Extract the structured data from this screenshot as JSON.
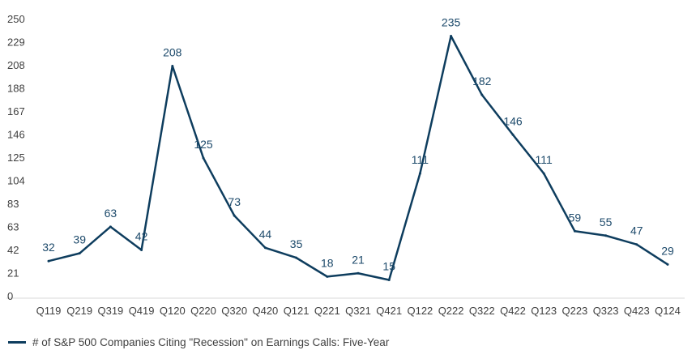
{
  "chart_data": {
    "type": "line",
    "title": "",
    "xlabel": "",
    "ylabel": "",
    "categories": [
      "Q119",
      "Q219",
      "Q319",
      "Q419",
      "Q120",
      "Q220",
      "Q320",
      "Q420",
      "Q121",
      "Q221",
      "Q321",
      "Q421",
      "Q122",
      "Q222",
      "Q322",
      "Q422",
      "Q123",
      "Q223",
      "Q323",
      "Q423",
      "Q124"
    ],
    "series": [
      {
        "name": "# of S&P 500 Companies Citing \"Recession\" on Earnings Calls: Five-Year",
        "values": [
          32,
          39,
          63,
          42,
          208,
          125,
          73,
          44,
          35,
          18,
          21,
          15,
          111,
          235,
          182,
          146,
          111,
          59,
          55,
          47,
          29
        ],
        "color": "#0e3d5e"
      }
    ],
    "ylim": [
      0,
      250
    ],
    "yticks": [
      "0",
      "21",
      "42",
      "63",
      "83",
      "104",
      "125",
      "146",
      "167",
      "188",
      "208",
      "229",
      "250"
    ],
    "grid": false,
    "legend_position": "bottom-left",
    "label_color": "#1d4a6b"
  }
}
